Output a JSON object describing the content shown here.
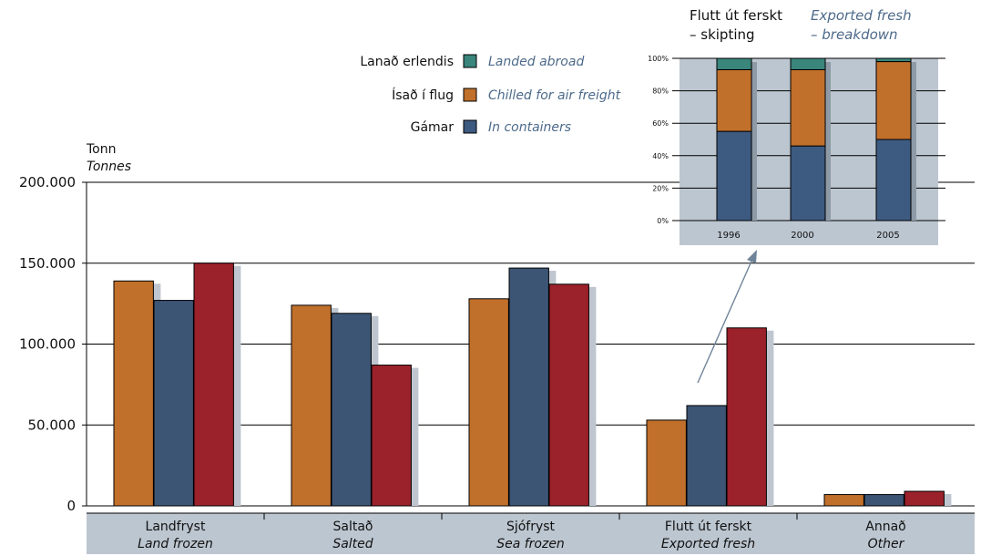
{
  "chart_data": [
    {
      "type": "bar",
      "unit": {
        "is": "Tonn",
        "en": "Tonnes"
      },
      "categories": [
        {
          "is": "Landfryst",
          "en": "Land frozen"
        },
        {
          "is": "Saltað",
          "en": "Salted"
        },
        {
          "is": "Sjófryst",
          "en": "Sea frozen"
        },
        {
          "is": "Flutt út ferskt",
          "en": "Exported fresh"
        },
        {
          "is": "Annað",
          "en": "Other"
        }
      ],
      "series": [
        {
          "color": "#c0702b",
          "values": [
            139000,
            124000,
            128000,
            53000,
            7000
          ]
        },
        {
          "color": "#3d5575",
          "values": [
            127000,
            119000,
            147000,
            62000,
            7000
          ]
        },
        {
          "color": "#9b212b",
          "values": [
            150000,
            87000,
            137000,
            110000,
            9000
          ]
        }
      ],
      "ylim": [
        0,
        200000
      ],
      "yticks": [
        "0",
        "50.000",
        "100.000",
        "150.000",
        "200.000"
      ],
      "grid": true
    },
    {
      "type": "bar",
      "stacked": true,
      "title": {
        "is": "Flutt út ferskt – skipting",
        "en": "Exported fresh – breakdown"
      },
      "title_lines": {
        "is": [
          "Flutt út ferskt",
          "– skipting"
        ],
        "en": [
          "Exported fresh",
          "– breakdown"
        ]
      },
      "categories": [
        "1996",
        "2000",
        "2005"
      ],
      "series": [
        {
          "name": {
            "is": "Gámar",
            "en": "In containers"
          },
          "color": "#3d5a80",
          "values": [
            55,
            46,
            50
          ]
        },
        {
          "name": {
            "is": "Ísað í flug",
            "en": "Chilled for air freight"
          },
          "color": "#c0702b",
          "values": [
            38,
            47,
            48
          ]
        },
        {
          "name": {
            "is": "Lanað erlendis",
            "en": "Landed abroad"
          },
          "color": "#3a857c",
          "values": [
            7,
            7,
            2
          ]
        }
      ],
      "ylim": [
        0,
        100
      ],
      "yticks": [
        "0%",
        "20%",
        "40%",
        "60%",
        "80%",
        "100%"
      ],
      "grid": true
    }
  ],
  "legend": [
    {
      "is": "Lanað erlendis",
      "en": "Landed abroad",
      "color": "#3a857c"
    },
    {
      "is": "Ísað í flug",
      "en": "Chilled for air freight",
      "color": "#c0702b"
    },
    {
      "is": "Gámar",
      "en": "In containers",
      "color": "#3d5a80"
    }
  ]
}
